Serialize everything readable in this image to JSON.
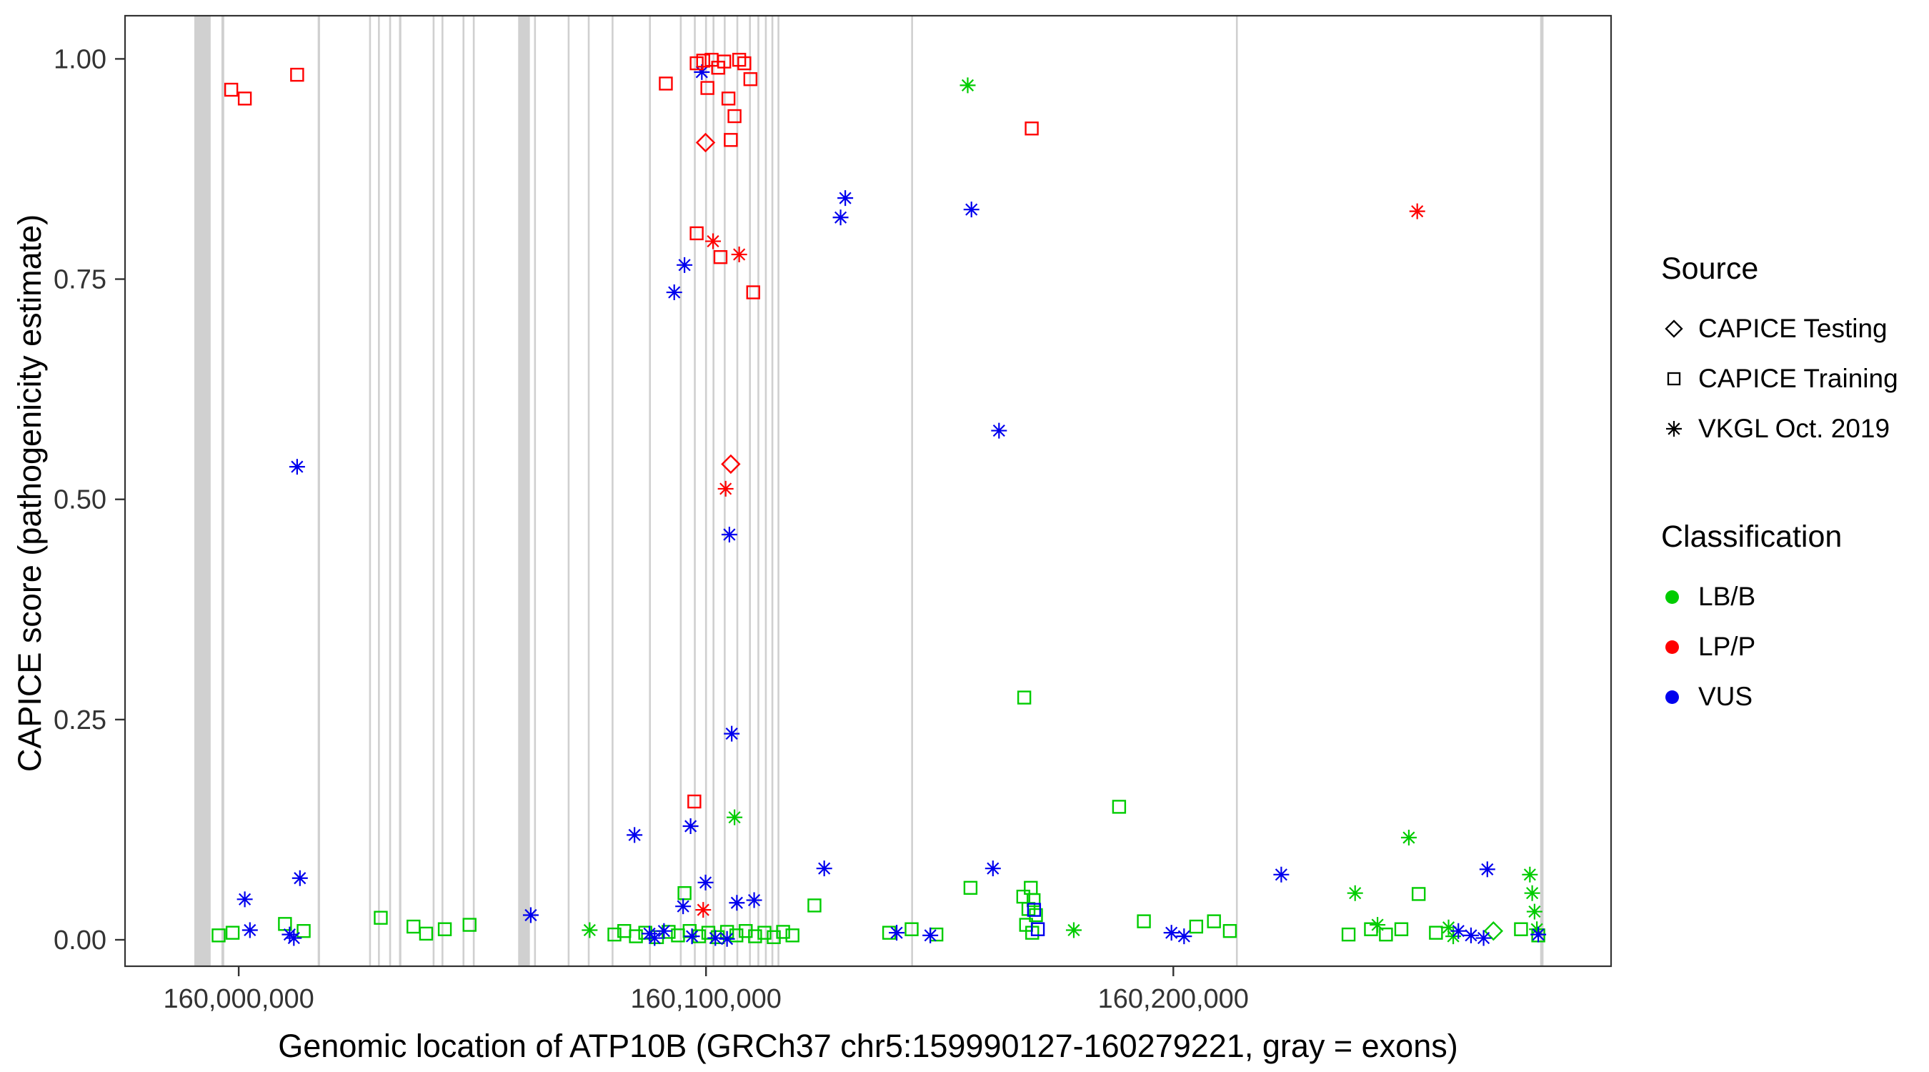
{
  "legend": {
    "source": {
      "title": "Source",
      "items": [
        {
          "label": "CAPICE Testing",
          "shape": "diamond"
        },
        {
          "label": "CAPICE Training",
          "shape": "square"
        },
        {
          "label": "VKGL Oct. 2019",
          "shape": "asterisk"
        }
      ]
    },
    "classification": {
      "title": "Classification",
      "items": [
        {
          "label": "LB/B",
          "color_key": "LB/B"
        },
        {
          "label": "LP/P",
          "color_key": "LP/P"
        },
        {
          "label": "VUS",
          "color_key": "VUS"
        }
      ]
    }
  },
  "chart_data": {
    "type": "scatter",
    "title": "",
    "xlabel": "Genomic location of ATP10B (GRCh37 chr5:159990127-160279221, gray = exons)",
    "ylabel": "CAPICE score (pathogenicity estimate)",
    "x_range": [
      159975672,
      160293676
    ],
    "y_range": [
      -0.03,
      1.049
    ],
    "grid": "off",
    "legend_position": "right",
    "exon_color": "#c4c4c4",
    "panel_border_color": "#333333",
    "tick_label_color": "#333333",
    "class_colors": {
      "LB/B": "#00CC00",
      "LP/P": "#FF0000",
      "VUS": "#0000EE"
    },
    "shape_by_source": {
      "testing": "diamond",
      "training": "square",
      "vkgl": "asterisk"
    },
    "x_ticks": [
      {
        "value": 160000000,
        "label": "160,000,000"
      },
      {
        "value": 160100000,
        "label": "160,100,000"
      },
      {
        "value": 160200000,
        "label": "160,200,000"
      }
    ],
    "y_ticks": [
      {
        "value": 0.0,
        "label": "0.00"
      },
      {
        "value": 0.25,
        "label": "0.25"
      },
      {
        "value": 0.5,
        "label": "0.50"
      },
      {
        "value": 0.75,
        "label": "0.75"
      },
      {
        "value": 1.0,
        "label": "1.00"
      }
    ],
    "exons_format": [
      "start",
      "end"
    ],
    "exons": [
      [
        159990500,
        159994000
      ],
      [
        159996300,
        159996900
      ],
      [
        160016900,
        160017400
      ],
      [
        160027900,
        160028300
      ],
      [
        160029800,
        160030200
      ],
      [
        160032200,
        160032600
      ],
      [
        160034300,
        160034800
      ],
      [
        160041500,
        160041900
      ],
      [
        160043400,
        160043800
      ],
      [
        160047900,
        160048300
      ],
      [
        160050100,
        160050500
      ],
      [
        160059800,
        160062300
      ],
      [
        160063200,
        160063600
      ],
      [
        160070400,
        160070800
      ],
      [
        160074700,
        160075100
      ],
      [
        160079800,
        160080200
      ],
      [
        160087800,
        160088200
      ],
      [
        160094400,
        160094800
      ],
      [
        160097400,
        160097800
      ],
      [
        160099800,
        160100200
      ],
      [
        160101400,
        160101800
      ],
      [
        160103800,
        160104200
      ],
      [
        160106500,
        160106900
      ],
      [
        160109200,
        160109600
      ],
      [
        160111000,
        160111400
      ],
      [
        160112600,
        160113000
      ],
      [
        160114000,
        160114400
      ],
      [
        160115300,
        160115700
      ],
      [
        160143900,
        160144300
      ],
      [
        160213400,
        160213800
      ],
      [
        160278500,
        160279221
      ]
    ],
    "points_columns": [
      "genomic_position",
      "capice_score",
      "source",
      "classification"
    ],
    "points": [
      [
        159995700,
        0.005,
        "training",
        "LB/B"
      ],
      [
        159998700,
        0.008,
        "training",
        "LB/B"
      ],
      [
        160009900,
        0.018,
        "training",
        "LB/B"
      ],
      [
        160013900,
        0.01,
        "training",
        "LB/B"
      ],
      [
        160030400,
        0.025,
        "training",
        "LB/B"
      ],
      [
        160037400,
        0.015,
        "training",
        "LB/B"
      ],
      [
        160040100,
        0.007,
        "training",
        "LB/B"
      ],
      [
        160044100,
        0.012,
        "training",
        "LB/B"
      ],
      [
        160049400,
        0.017,
        "training",
        "LB/B"
      ],
      [
        160095400,
        0.053,
        "training",
        "LB/B"
      ],
      [
        160080400,
        0.006,
        "training",
        "LB/B"
      ],
      [
        160082500,
        0.01,
        "training",
        "LB/B"
      ],
      [
        160085000,
        0.004,
        "training",
        "LB/B"
      ],
      [
        160087000,
        0.008,
        "training",
        "LB/B"
      ],
      [
        160089500,
        0.003,
        "training",
        "LB/B"
      ],
      [
        160092000,
        0.009,
        "training",
        "LB/B"
      ],
      [
        160094000,
        0.005,
        "training",
        "LB/B"
      ],
      [
        160096500,
        0.01,
        "training",
        "LB/B"
      ],
      [
        160098500,
        0.004,
        "training",
        "LB/B"
      ],
      [
        160100500,
        0.008,
        "training",
        "LB/B"
      ],
      [
        160102500,
        0.003,
        "training",
        "LB/B"
      ],
      [
        160104500,
        0.009,
        "training",
        "LB/B"
      ],
      [
        160106500,
        0.005,
        "training",
        "LB/B"
      ],
      [
        160108500,
        0.01,
        "training",
        "LB/B"
      ],
      [
        160110500,
        0.004,
        "training",
        "LB/B"
      ],
      [
        160112500,
        0.008,
        "training",
        "LB/B"
      ],
      [
        160114500,
        0.003,
        "training",
        "LB/B"
      ],
      [
        160116500,
        0.009,
        "training",
        "LB/B"
      ],
      [
        160118500,
        0.005,
        "training",
        "LB/B"
      ],
      [
        160123200,
        0.039,
        "training",
        "LB/B"
      ],
      [
        160139200,
        0.008,
        "training",
        "LB/B"
      ],
      [
        160144000,
        0.012,
        "training",
        "LB/B"
      ],
      [
        160149300,
        0.006,
        "training",
        "LB/B"
      ],
      [
        160156600,
        0.059,
        "training",
        "LB/B"
      ],
      [
        160168100,
        0.275,
        "training",
        "LB/B"
      ],
      [
        160167900,
        0.049,
        "training",
        "LB/B"
      ],
      [
        160169500,
        0.059,
        "training",
        "LB/B"
      ],
      [
        160170100,
        0.045,
        "training",
        "LB/B"
      ],
      [
        160169000,
        0.035,
        "training",
        "LB/B"
      ],
      [
        160170600,
        0.028,
        "training",
        "LB/B"
      ],
      [
        160168500,
        0.017,
        "training",
        "LB/B"
      ],
      [
        160169800,
        0.008,
        "training",
        "LB/B"
      ],
      [
        160188400,
        0.151,
        "training",
        "LB/B"
      ],
      [
        160193700,
        0.021,
        "training",
        "LB/B"
      ],
      [
        160204900,
        0.015,
        "training",
        "LB/B"
      ],
      [
        160208700,
        0.021,
        "training",
        "LB/B"
      ],
      [
        160212100,
        0.01,
        "training",
        "LB/B"
      ],
      [
        160237500,
        0.006,
        "training",
        "LB/B"
      ],
      [
        160242300,
        0.012,
        "training",
        "LB/B"
      ],
      [
        160245500,
        0.006,
        "training",
        "LB/B"
      ],
      [
        160248800,
        0.012,
        "training",
        "LB/B"
      ],
      [
        160252500,
        0.052,
        "training",
        "LB/B"
      ],
      [
        160256200,
        0.008,
        "training",
        "LB/B"
      ],
      [
        160274400,
        0.012,
        "training",
        "LB/B"
      ],
      [
        160278100,
        0.005,
        "training",
        "LB/B"
      ],
      [
        160156000,
        0.97,
        "vkgl",
        "LB/B"
      ],
      [
        160106100,
        0.139,
        "vkgl",
        "LB/B"
      ],
      [
        160075100,
        0.011,
        "vkgl",
        "LB/B"
      ],
      [
        160250400,
        0.116,
        "vkgl",
        "LB/B"
      ],
      [
        160238900,
        0.053,
        "vkgl",
        "LB/B"
      ],
      [
        160243700,
        0.017,
        "vkgl",
        "LB/B"
      ],
      [
        160178700,
        0.011,
        "vkgl",
        "LB/B"
      ],
      [
        160276300,
        0.074,
        "vkgl",
        "LB/B"
      ],
      [
        160276800,
        0.053,
        "vkgl",
        "LB/B"
      ],
      [
        160277300,
        0.032,
        "vkgl",
        "LB/B"
      ],
      [
        160277800,
        0.012,
        "vkgl",
        "LB/B"
      ],
      [
        160258900,
        0.014,
        "vkgl",
        "LB/B"
      ],
      [
        160259900,
        0.004,
        "vkgl",
        "LB/B"
      ],
      [
        160268500,
        0.01,
        "testing",
        "LB/B"
      ],
      [
        160012500,
        0.537,
        "vkgl",
        "VUS"
      ],
      [
        160095400,
        0.766,
        "vkgl",
        "VUS"
      ],
      [
        160093200,
        0.735,
        "vkgl",
        "VUS"
      ],
      [
        160099100,
        0.985,
        "vkgl",
        "VUS"
      ],
      [
        160129800,
        0.842,
        "vkgl",
        "VUS"
      ],
      [
        160128800,
        0.82,
        "vkgl",
        "VUS"
      ],
      [
        160156800,
        0.829,
        "vkgl",
        "VUS"
      ],
      [
        160162700,
        0.578,
        "vkgl",
        "VUS"
      ],
      [
        160105000,
        0.46,
        "vkgl",
        "VUS"
      ],
      [
        160105500,
        0.234,
        "vkgl",
        "VUS"
      ],
      [
        160125300,
        0.081,
        "vkgl",
        "VUS"
      ],
      [
        160161400,
        0.081,
        "vkgl",
        "VUS"
      ],
      [
        160223100,
        0.074,
        "vkgl",
        "VUS"
      ],
      [
        160267200,
        0.08,
        "vkgl",
        "VUS"
      ],
      [
        160013100,
        0.07,
        "vkgl",
        "VUS"
      ],
      [
        160001300,
        0.046,
        "vkgl",
        "VUS"
      ],
      [
        160084700,
        0.119,
        "vkgl",
        "VUS"
      ],
      [
        160096700,
        0.129,
        "vkgl",
        "VUS"
      ],
      [
        160099900,
        0.065,
        "vkgl",
        "VUS"
      ],
      [
        160095100,
        0.038,
        "vkgl",
        "VUS"
      ],
      [
        160106600,
        0.042,
        "vkgl",
        "VUS"
      ],
      [
        160110300,
        0.045,
        "vkgl",
        "VUS"
      ],
      [
        160062500,
        0.028,
        "vkgl",
        "VUS"
      ],
      [
        160002400,
        0.011,
        "vkgl",
        "VUS"
      ],
      [
        160010900,
        0.006,
        "vkgl",
        "VUS"
      ],
      [
        160011800,
        0.002,
        "vkgl",
        "VUS"
      ],
      [
        160087900,
        0.007,
        "vkgl",
        "VUS"
      ],
      [
        160089000,
        0.002,
        "vkgl",
        "VUS"
      ],
      [
        160091000,
        0.01,
        "vkgl",
        "VUS"
      ],
      [
        160097000,
        0.004,
        "vkgl",
        "VUS"
      ],
      [
        160102000,
        0.002,
        "vkgl",
        "VUS"
      ],
      [
        160104500,
        0.001,
        "vkgl",
        "VUS"
      ],
      [
        160140800,
        0.008,
        "vkgl",
        "VUS"
      ],
      [
        160148000,
        0.005,
        "vkgl",
        "VUS"
      ],
      [
        160199600,
        0.008,
        "vkgl",
        "VUS"
      ],
      [
        160202300,
        0.004,
        "vkgl",
        "VUS"
      ],
      [
        160261000,
        0.01,
        "vkgl",
        "VUS"
      ],
      [
        160263700,
        0.005,
        "vkgl",
        "VUS"
      ],
      [
        160266400,
        0.002,
        "vkgl",
        "VUS"
      ],
      [
        160278100,
        0.006,
        "vkgl",
        "VUS"
      ],
      [
        160170200,
        0.034,
        "training",
        "VUS"
      ],
      [
        160171000,
        0.012,
        "training",
        "VUS"
      ],
      [
        159998400,
        0.965,
        "training",
        "LP/P"
      ],
      [
        160001300,
        0.955,
        "training",
        "LP/P"
      ],
      [
        160012500,
        0.982,
        "training",
        "LP/P"
      ],
      [
        160091400,
        0.972,
        "training",
        "LP/P"
      ],
      [
        160098000,
        0.995,
        "training",
        "LP/P"
      ],
      [
        160099400,
        0.998,
        "training",
        "LP/P"
      ],
      [
        160100300,
        0.967,
        "training",
        "LP/P"
      ],
      [
        160101200,
        0.999,
        "training",
        "LP/P"
      ],
      [
        160102600,
        0.99,
        "training",
        "LP/P"
      ],
      [
        160103900,
        0.997,
        "training",
        "LP/P"
      ],
      [
        160104800,
        0.955,
        "training",
        "LP/P"
      ],
      [
        160106100,
        0.935,
        "training",
        "LP/P"
      ],
      [
        160107100,
        0.999,
        "training",
        "LP/P"
      ],
      [
        160108200,
        0.995,
        "training",
        "LP/P"
      ],
      [
        160109500,
        0.977,
        "training",
        "LP/P"
      ],
      [
        160105300,
        0.908,
        "training",
        "LP/P"
      ],
      [
        160098000,
        0.802,
        "training",
        "LP/P"
      ],
      [
        160103100,
        0.775,
        "training",
        "LP/P"
      ],
      [
        160110100,
        0.735,
        "training",
        "LP/P"
      ],
      [
        160097500,
        0.157,
        "training",
        "LP/P"
      ],
      [
        160169700,
        0.921,
        "training",
        "LP/P"
      ],
      [
        160099900,
        0.905,
        "testing",
        "LP/P"
      ],
      [
        160105300,
        0.54,
        "testing",
        "LP/P"
      ],
      [
        160101500,
        0.793,
        "vkgl",
        "LP/P"
      ],
      [
        160107100,
        0.778,
        "vkgl",
        "LP/P"
      ],
      [
        160104200,
        0.512,
        "vkgl",
        "LP/P"
      ],
      [
        160099400,
        0.034,
        "vkgl",
        "LP/P"
      ],
      [
        160252200,
        0.827,
        "vkgl",
        "LP/P"
      ]
    ]
  }
}
